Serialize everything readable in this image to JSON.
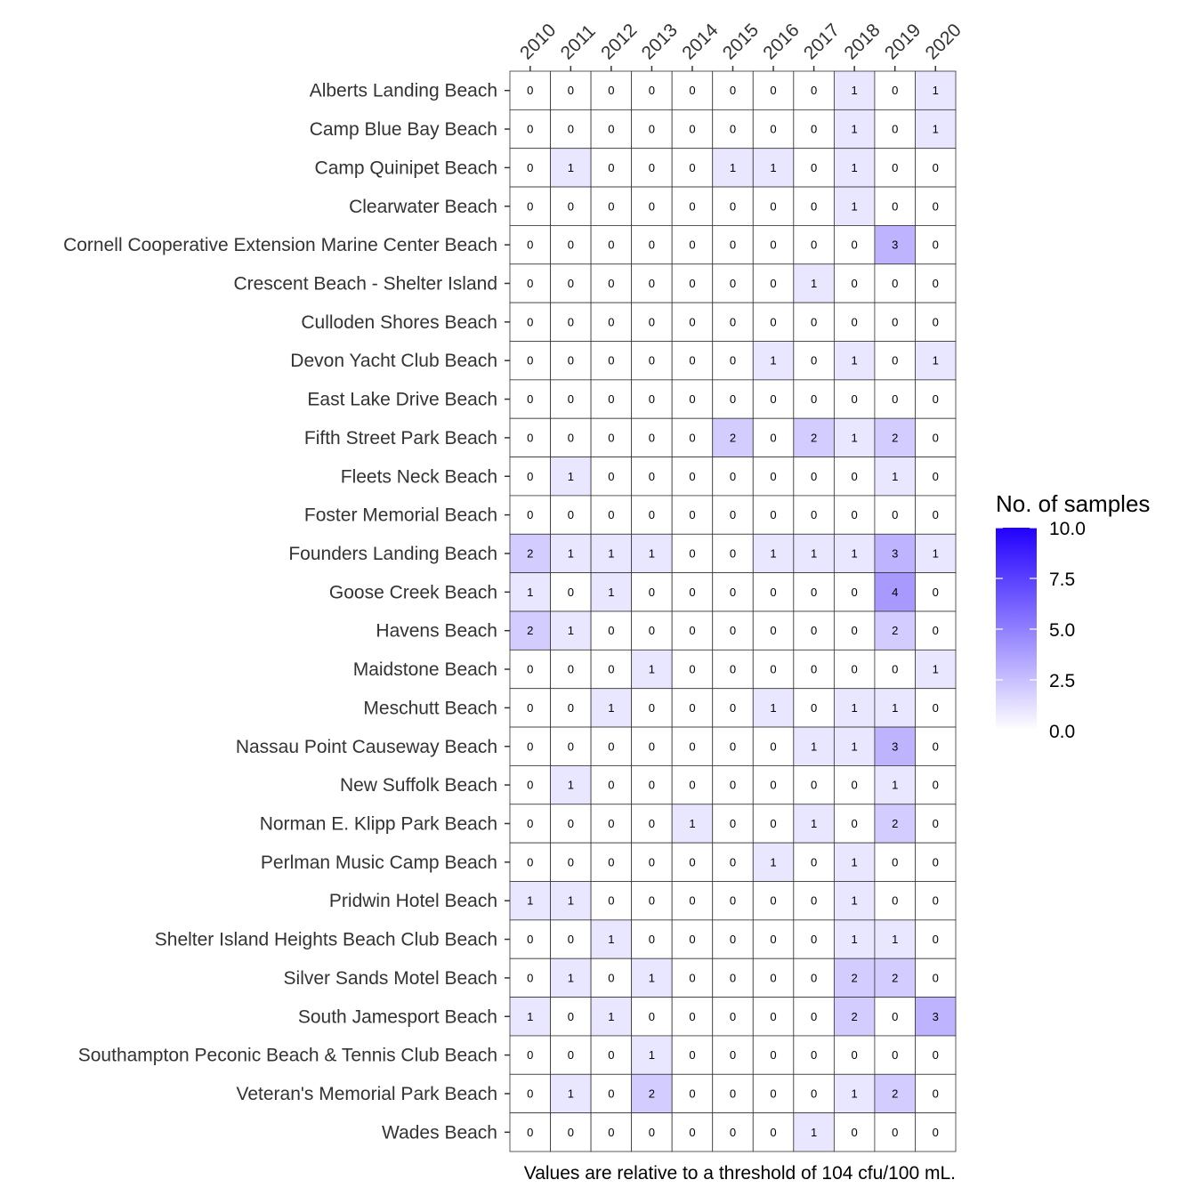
{
  "chart_data": {
    "type": "heatmap",
    "x": [
      "2010",
      "2011",
      "2012",
      "2013",
      "2014",
      "2015",
      "2016",
      "2017",
      "2018",
      "2019",
      "2020"
    ],
    "y": [
      "Alberts Landing Beach",
      "Camp Blue Bay Beach",
      "Camp Quinipet Beach",
      "Clearwater Beach",
      "Cornell Cooperative Extension Marine Center Beach",
      "Crescent Beach - Shelter Island",
      "Culloden Shores Beach",
      "Devon Yacht Club Beach",
      "East Lake Drive Beach",
      "Fifth Street Park Beach",
      "Fleets Neck Beach",
      "Foster Memorial Beach",
      "Founders Landing Beach",
      "Goose Creek Beach",
      "Havens Beach",
      "Maidstone Beach",
      "Meschutt Beach",
      "Nassau Point Causeway Beach",
      "New Suffolk Beach",
      "Norman E. Klipp Park Beach",
      "Perlman Music Camp Beach",
      "Pridwin Hotel Beach",
      "Shelter Island Heights Beach Club Beach",
      "Silver Sands Motel Beach",
      "South Jamesport Beach",
      "Southampton Peconic Beach & Tennis Club Beach",
      "Veteran's Memorial Park Beach",
      "Wades Beach"
    ],
    "values": [
      [
        0,
        0,
        0,
        0,
        0,
        0,
        0,
        0,
        1,
        0,
        1
      ],
      [
        0,
        0,
        0,
        0,
        0,
        0,
        0,
        0,
        1,
        0,
        1
      ],
      [
        0,
        1,
        0,
        0,
        0,
        1,
        1,
        0,
        1,
        0,
        0
      ],
      [
        0,
        0,
        0,
        0,
        0,
        0,
        0,
        0,
        1,
        0,
        0
      ],
      [
        0,
        0,
        0,
        0,
        0,
        0,
        0,
        0,
        0,
        3,
        0
      ],
      [
        0,
        0,
        0,
        0,
        0,
        0,
        0,
        1,
        0,
        0,
        0
      ],
      [
        0,
        0,
        0,
        0,
        0,
        0,
        0,
        0,
        0,
        0,
        0
      ],
      [
        0,
        0,
        0,
        0,
        0,
        0,
        1,
        0,
        1,
        0,
        1
      ],
      [
        0,
        0,
        0,
        0,
        0,
        0,
        0,
        0,
        0,
        0,
        0
      ],
      [
        0,
        0,
        0,
        0,
        0,
        2,
        0,
        2,
        1,
        2,
        0
      ],
      [
        0,
        1,
        0,
        0,
        0,
        0,
        0,
        0,
        0,
        1,
        0
      ],
      [
        0,
        0,
        0,
        0,
        0,
        0,
        0,
        0,
        0,
        0,
        0
      ],
      [
        2,
        1,
        1,
        1,
        0,
        0,
        1,
        1,
        1,
        3,
        1
      ],
      [
        1,
        0,
        1,
        0,
        0,
        0,
        0,
        0,
        0,
        4,
        0
      ],
      [
        2,
        1,
        0,
        0,
        0,
        0,
        0,
        0,
        0,
        2,
        0
      ],
      [
        0,
        0,
        0,
        1,
        0,
        0,
        0,
        0,
        0,
        0,
        1
      ],
      [
        0,
        0,
        1,
        0,
        0,
        0,
        1,
        0,
        1,
        1,
        0
      ],
      [
        0,
        0,
        0,
        0,
        0,
        0,
        0,
        1,
        1,
        3,
        0
      ],
      [
        0,
        1,
        0,
        0,
        0,
        0,
        0,
        0,
        0,
        1,
        0
      ],
      [
        0,
        0,
        0,
        0,
        1,
        0,
        0,
        1,
        0,
        2,
        0
      ],
      [
        0,
        0,
        0,
        0,
        0,
        0,
        1,
        0,
        1,
        0,
        0
      ],
      [
        1,
        1,
        0,
        0,
        0,
        0,
        0,
        0,
        1,
        0,
        0
      ],
      [
        0,
        0,
        1,
        0,
        0,
        0,
        0,
        0,
        1,
        1,
        0
      ],
      [
        0,
        1,
        0,
        1,
        0,
        0,
        0,
        0,
        2,
        2,
        0
      ],
      [
        1,
        0,
        1,
        0,
        0,
        0,
        0,
        0,
        2,
        0,
        3
      ],
      [
        0,
        0,
        0,
        1,
        0,
        0,
        0,
        0,
        0,
        0,
        0
      ],
      [
        0,
        1,
        0,
        2,
        0,
        0,
        0,
        0,
        1,
        2,
        0
      ],
      [
        0,
        0,
        0,
        0,
        0,
        0,
        0,
        1,
        0,
        0,
        0
      ]
    ],
    "color_scale": {
      "min": 0,
      "max": 10,
      "low_color": "#ffffff",
      "high_color": "#2200ff"
    },
    "legend": {
      "title": "No. of samples",
      "ticks": [
        "0.0",
        "2.5",
        "5.0",
        "7.5",
        "10.0"
      ],
      "tick_values": [
        0,
        2.5,
        5,
        7.5,
        10
      ],
      "placement": "right"
    },
    "x_axis_position": "top",
    "caption": "Values are relative to a threshold of 104 cfu/100 mL."
  }
}
